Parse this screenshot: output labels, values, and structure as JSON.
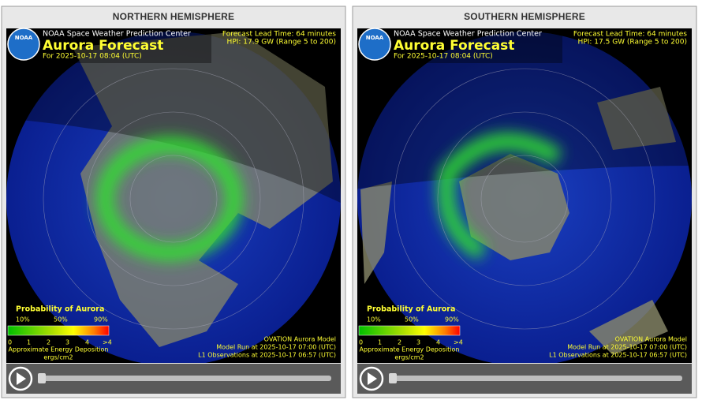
{
  "panels": [
    {
      "title": "NORTHERN HEMISPHERE",
      "logo": "NOAA",
      "agency": "NOAA Space Weather Prediction Center",
      "product": "Aurora Forecast",
      "time": "For 2025-10-17 08:04 (UTC)",
      "lead_time": "Forecast Lead Time:  64 minutes",
      "hpi": "HPI:  17.9 GW (Range 5 to 200)",
      "legend_title": "Probability of Aurora",
      "prob_labels": [
        "10%",
        "50%",
        "90%"
      ],
      "energy_labels": [
        "0",
        "1",
        "2",
        "3",
        "4",
        ">4"
      ],
      "energy_caption": [
        "Approximate Energy Deposition",
        "ergs/cm2"
      ],
      "model": "OVATION Aurora Model",
      "run": "Model Run at 2025-10-17 07:00 (UTC)",
      "obs": "L1 Observations at 2025-10-17 06:57 (UTC)"
    },
    {
      "title": "SOUTHERN HEMISPHERE",
      "logo": "NOAA",
      "agency": "NOAA Space Weather Prediction Center",
      "product": "Aurora Forecast",
      "time": "For 2025-10-17 08:04 (UTC)",
      "lead_time": "Forecast Lead Time:  64 minutes",
      "hpi": "HPI:  17.5 GW (Range 5 to 200)",
      "legend_title": "Probability of Aurora",
      "prob_labels": [
        "10%",
        "50%",
        "90%"
      ],
      "energy_labels": [
        "0",
        "1",
        "2",
        "3",
        "4",
        ">4"
      ],
      "energy_caption": [
        "Approximate Energy Deposition",
        "ergs/cm2"
      ],
      "model": "OVATION Aurora Model",
      "run": "Model Run at 2025-10-17 07:00 (UTC)",
      "obs": "L1 Observations at 2025-10-17 06:57 (UTC)"
    }
  ]
}
